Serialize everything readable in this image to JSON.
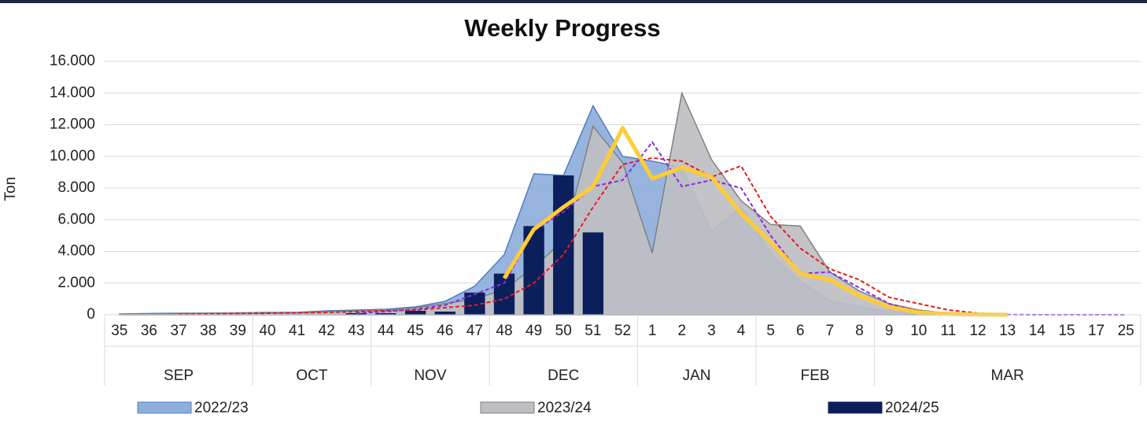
{
  "chart_data": {
    "type": "mixed",
    "title": "Weekly Progress",
    "y_label": "Ton",
    "categories": [
      "35",
      "36",
      "37",
      "38",
      "39",
      "40",
      "41",
      "42",
      "43",
      "44",
      "45",
      "46",
      "47",
      "48",
      "49",
      "50",
      "51",
      "52",
      "1",
      "2",
      "3",
      "4",
      "5",
      "6",
      "7",
      "8",
      "9",
      "10",
      "11",
      "12",
      "13",
      "14",
      "15",
      "17",
      "25"
    ],
    "groups": [
      {
        "label": "SEP",
        "span": 5
      },
      {
        "label": "OCT",
        "span": 4
      },
      {
        "label": "NOV",
        "span": 4
      },
      {
        "label": "DEC",
        "span": 5
      },
      {
        "label": "JAN",
        "span": 4
      },
      {
        "label": "FEB",
        "span": 4
      },
      {
        "label": "MAR",
        "span": 9
      }
    ],
    "ylim": [
      0,
      16000
    ],
    "yticks": [
      0,
      {
        "value": 2000,
        "label": "2.000"
      },
      {
        "value": 4000,
        "label": "4.000"
      },
      {
        "value": 6000,
        "label": "6.000"
      },
      {
        "value": 8000,
        "label": "8.000"
      },
      {
        "value": 10000,
        "label": "10.000"
      },
      {
        "value": 12000,
        "label": "12.000"
      },
      {
        "value": 14000,
        "label": "14.000"
      },
      {
        "value": 16000,
        "label": "16.000"
      }
    ],
    "grid": true,
    "series": [
      {
        "name": "2022/23",
        "kind": "area",
        "color": "#8eaedb",
        "stroke": "#4f7fbf",
        "values": [
          50,
          80,
          100,
          100,
          120,
          150,
          150,
          250,
          300,
          350,
          500,
          850,
          1800,
          3800,
          8900,
          8800,
          13200,
          10000,
          9700,
          9300,
          5300,
          6800,
          3900,
          2100,
          900,
          500,
          200,
          100,
          50,
          30,
          0,
          null,
          null,
          null,
          null
        ]
      },
      {
        "name": "2023/24",
        "kind": "area",
        "color": "#bfbfc3",
        "stroke": "#808080",
        "values": [
          30,
          50,
          80,
          100,
          100,
          120,
          120,
          200,
          250,
          300,
          450,
          700,
          1000,
          1600,
          3000,
          4700,
          11900,
          9600,
          3900,
          14000,
          9800,
          7200,
          5700,
          5600,
          2700,
          1500,
          700,
          300,
          100,
          50,
          0,
          null,
          null,
          null,
          null
        ]
      },
      {
        "name": "2024/25",
        "kind": "bar",
        "color": "#0b1f5c",
        "values": [
          0,
          0,
          0,
          0,
          0,
          0,
          0,
          0,
          100,
          100,
          250,
          200,
          1400,
          2600,
          5600,
          8800,
          5200,
          null,
          null,
          null,
          null,
          null,
          null,
          null,
          null,
          null,
          null,
          null,
          null,
          null,
          null,
          null,
          null,
          null,
          null
        ]
      },
      {
        "kind": "dashed",
        "color": "#e8191e",
        "values": [
          null,
          null,
          30,
          50,
          80,
          100,
          120,
          150,
          200,
          250,
          300,
          450,
          600,
          1000,
          2000,
          3800,
          6800,
          9500,
          9900,
          9700,
          8700,
          9400,
          6200,
          4200,
          2900,
          2200,
          1100,
          700,
          300,
          100,
          0,
          null,
          null,
          null,
          null
        ]
      },
      {
        "kind": "dashed",
        "color": "#8a2be2",
        "values": [
          null,
          null,
          null,
          null,
          null,
          null,
          null,
          null,
          100,
          200,
          350,
          600,
          1300,
          2000,
          5300,
          6500,
          8100,
          8500,
          10900,
          8100,
          8500,
          8000,
          5000,
          2600,
          2700,
          1700,
          700,
          200,
          80,
          30,
          10,
          0,
          0,
          0,
          0
        ]
      },
      {
        "kind": "line",
        "color": "#ffcc33",
        "values": [
          null,
          null,
          null,
          null,
          null,
          null,
          null,
          null,
          null,
          null,
          null,
          null,
          null,
          2300,
          5400,
          6800,
          8100,
          11800,
          8600,
          9300,
          8700,
          6400,
          4600,
          2600,
          2200,
          1200,
          500,
          150,
          50,
          20,
          0,
          null,
          null,
          null,
          null
        ]
      }
    ]
  }
}
